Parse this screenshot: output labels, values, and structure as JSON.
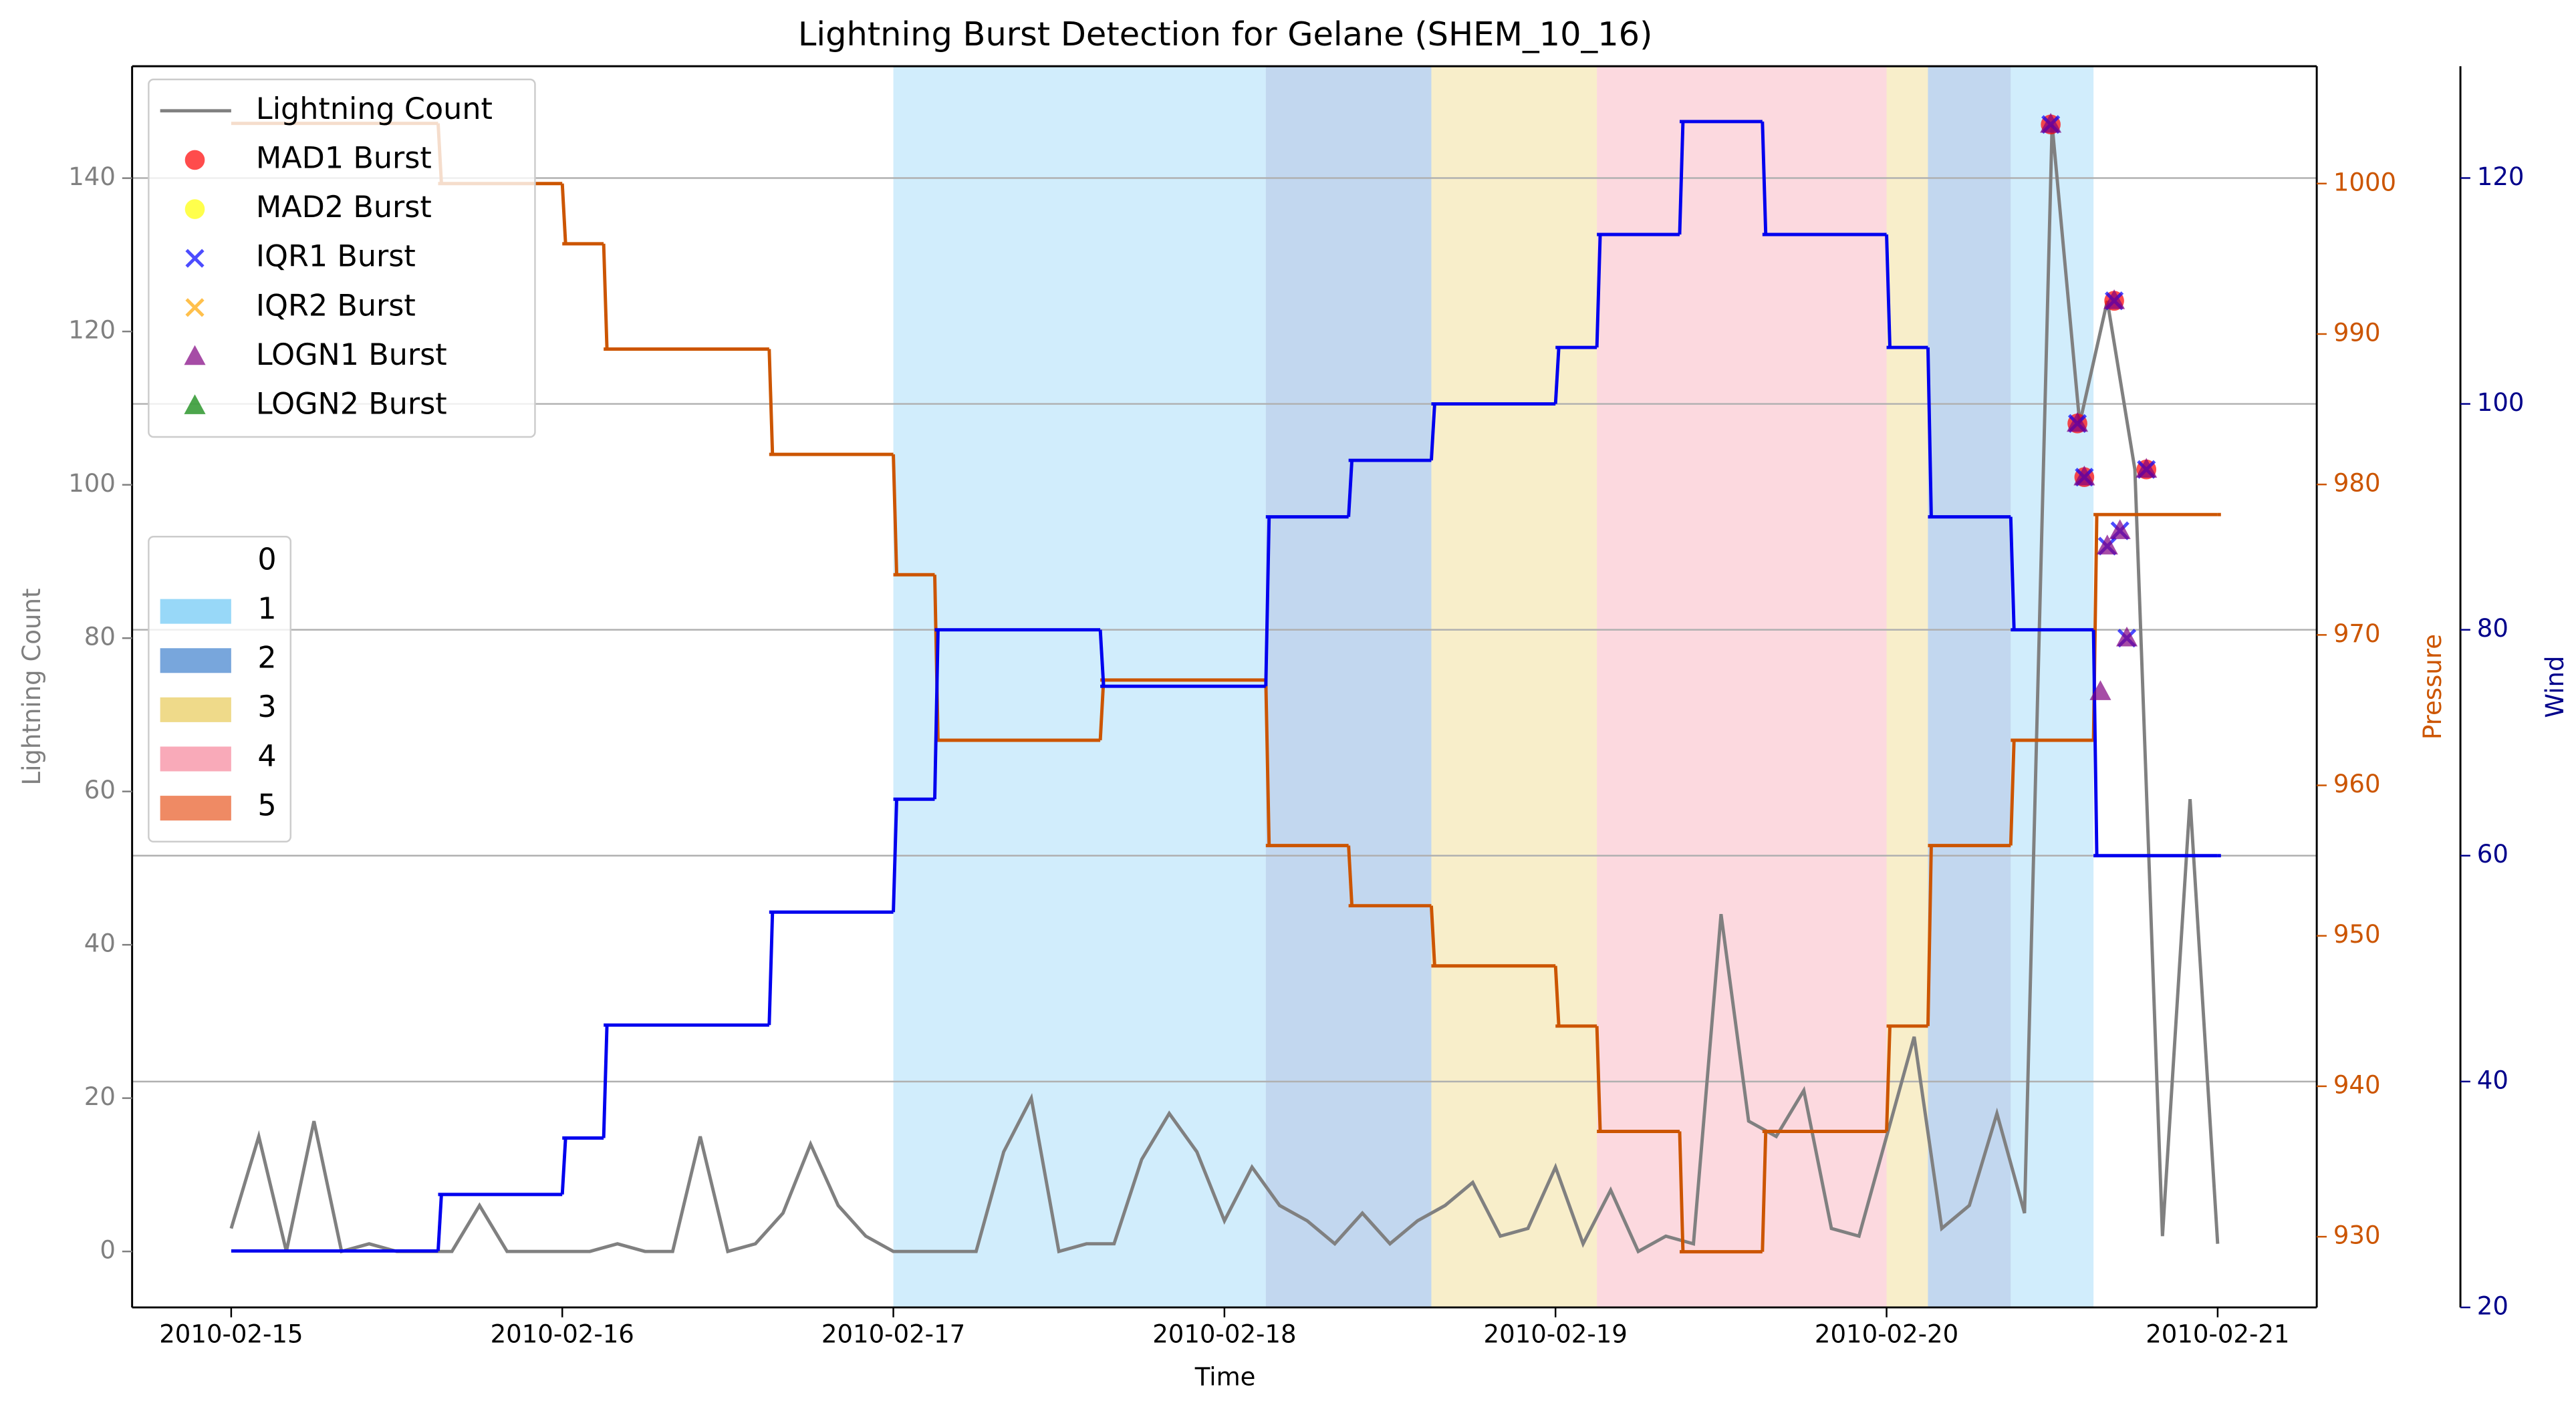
{
  "chart_data": {
    "type": "line",
    "title": "Lightning Burst Detection for Gelane (SHEM_10_16)",
    "xlabel": "Time",
    "ylabel": "Lightning Count",
    "y2label": "Pressure",
    "y3label": "Wind",
    "xlim": [
      "2010-02-14T16:49",
      "2010-02-21T07:11"
    ],
    "xticks": [
      {
        "value": "2010-02-15T00:00",
        "label": "2010-02-15"
      },
      {
        "value": "2010-02-16T00:00",
        "label": "2010-02-16"
      },
      {
        "value": "2010-02-17T00:00",
        "label": "2010-02-17"
      },
      {
        "value": "2010-02-18T00:00",
        "label": "2010-02-18"
      },
      {
        "value": "2010-02-19T00:00",
        "label": "2010-02-19"
      },
      {
        "value": "2010-02-20T00:00",
        "label": "2010-02-20"
      },
      {
        "value": "2010-02-21T00:00",
        "label": "2010-02-21"
      }
    ],
    "ylim": [
      -7.3,
      154.6
    ],
    "yticks": [
      0,
      20,
      40,
      60,
      80,
      100,
      120,
      140
    ],
    "y2lim": [
      925.3,
      1007.8
    ],
    "y2ticks": [
      930,
      940,
      950,
      960,
      970,
      980,
      990,
      1000
    ],
    "y3lim": [
      20,
      129.9
    ],
    "y3ticks": [
      20,
      40,
      60,
      80,
      100,
      120
    ],
    "grid": "y3",
    "legend": "upper left",
    "y_color": "#808080",
    "y2_color": "#cc5500",
    "y3_color": "#00008b",
    "series": [
      {
        "name": "Lightning Count",
        "type": "line",
        "color": "#808080",
        "x": [
          "2010-02-15T00:00",
          "2010-02-15T02:00",
          "2010-02-15T04:00",
          "2010-02-15T06:00",
          "2010-02-15T08:00",
          "2010-02-15T10:00",
          "2010-02-15T12:00",
          "2010-02-15T14:00",
          "2010-02-15T16:00",
          "2010-02-15T18:00",
          "2010-02-15T20:00",
          "2010-02-15T22:00",
          "2010-02-16T00:00",
          "2010-02-16T02:00",
          "2010-02-16T04:00",
          "2010-02-16T06:00",
          "2010-02-16T08:00",
          "2010-02-16T10:00",
          "2010-02-16T12:00",
          "2010-02-16T14:00",
          "2010-02-16T16:00",
          "2010-02-16T18:00",
          "2010-02-16T20:00",
          "2010-02-16T22:00",
          "2010-02-17T00:00",
          "2010-02-17T02:00",
          "2010-02-17T04:00",
          "2010-02-17T06:00",
          "2010-02-17T08:00",
          "2010-02-17T10:00",
          "2010-02-17T12:00",
          "2010-02-17T14:00",
          "2010-02-17T16:00",
          "2010-02-17T18:00",
          "2010-02-17T20:00",
          "2010-02-17T22:00",
          "2010-02-18T00:00",
          "2010-02-18T02:00",
          "2010-02-18T04:00",
          "2010-02-18T06:00",
          "2010-02-18T08:00",
          "2010-02-18T10:00",
          "2010-02-18T12:00",
          "2010-02-18T14:00",
          "2010-02-18T16:00",
          "2010-02-18T18:00",
          "2010-02-18T20:00",
          "2010-02-18T22:00",
          "2010-02-19T00:00",
          "2010-02-19T02:00",
          "2010-02-19T04:00",
          "2010-02-19T06:00",
          "2010-02-19T08:00",
          "2010-02-19T10:00",
          "2010-02-19T12:00",
          "2010-02-19T14:00",
          "2010-02-19T16:00",
          "2010-02-19T18:00",
          "2010-02-19T20:00",
          "2010-02-19T22:00",
          "2010-02-20T00:00",
          "2010-02-20T02:00",
          "2010-02-20T04:00",
          "2010-02-20T06:00",
          "2010-02-20T08:00",
          "2010-02-20T10:00",
          "2010-02-20T12:00",
          "2010-02-20T14:00",
          "2010-02-20T16:00",
          "2010-02-20T18:00",
          "2010-02-20T20:00",
          "2010-02-20T22:00",
          "2010-02-21T00:00"
        ],
        "values": [
          3,
          15,
          0,
          17,
          0,
          1,
          0,
          0,
          0,
          6,
          0,
          0,
          0,
          0,
          1,
          0,
          0,
          15,
          0,
          1,
          5,
          14,
          6,
          2,
          0,
          0,
          0,
          0,
          13,
          20,
          0,
          1,
          1,
          12,
          18,
          13,
          4,
          11,
          6,
          4,
          1,
          5,
          1,
          4,
          6,
          9,
          2,
          3,
          11,
          1,
          8,
          0,
          2,
          1,
          44,
          17,
          15,
          21,
          3,
          2,
          15,
          28,
          3,
          6,
          18,
          5,
          147,
          108,
          124,
          102,
          2,
          59,
          1
        ]
      },
      {
        "name": "MAD1 Burst",
        "type": "scatter",
        "marker": "o",
        "color": "#ff0000",
        "x": [
          "2010-02-20T11:54",
          "2010-02-20T13:50",
          "2010-02-20T14:20",
          "2010-02-20T16:30",
          "2010-02-20T18:50"
        ],
        "values": [
          147,
          108,
          101,
          124,
          102
        ]
      },
      {
        "name": "MAD2 Burst",
        "type": "scatter",
        "marker": "o",
        "color": "#ffff00",
        "x": [],
        "values": []
      },
      {
        "name": "IQR1 Burst",
        "type": "scatter",
        "marker": "x",
        "color": "#0000ff",
        "x": [
          "2010-02-20T11:54",
          "2010-02-20T13:50",
          "2010-02-20T14:20",
          "2010-02-20T16:00",
          "2010-02-20T16:30",
          "2010-02-20T16:55",
          "2010-02-20T17:25",
          "2010-02-20T18:50"
        ],
        "values": [
          147,
          108,
          101,
          92,
          124,
          94,
          80,
          102
        ]
      },
      {
        "name": "IQR2 Burst",
        "type": "scatter",
        "marker": "x",
        "color": "#ffa500",
        "x": [],
        "values": []
      },
      {
        "name": "LOGN1 Burst",
        "type": "scatter",
        "marker": "^",
        "color": "#800080",
        "x": [
          "2010-02-20T11:54",
          "2010-02-20T13:50",
          "2010-02-20T14:20",
          "2010-02-20T15:30",
          "2010-02-20T16:00",
          "2010-02-20T16:30",
          "2010-02-20T16:55",
          "2010-02-20T17:25",
          "2010-02-20T18:50"
        ],
        "values": [
          147,
          108,
          101,
          73,
          92,
          124,
          94,
          80,
          102
        ]
      },
      {
        "name": "LOGN2 Burst",
        "type": "scatter",
        "marker": "^",
        "color": "#008000",
        "x": [],
        "values": []
      },
      {
        "type": "step",
        "axis": "y2",
        "color": "#cc5500",
        "x": [
          "2010-02-15T00:00",
          "2010-02-15T15:00",
          "2010-02-16T00:00",
          "2010-02-16T03:00",
          "2010-02-16T15:00",
          "2010-02-17T00:00",
          "2010-02-17T03:00",
          "2010-02-17T15:00",
          "2010-02-18T03:00",
          "2010-02-18T09:00",
          "2010-02-18T15:00",
          "2010-02-19T00:00",
          "2010-02-19T03:00",
          "2010-02-19T09:00",
          "2010-02-19T15:00",
          "2010-02-20T00:00",
          "2010-02-20T03:00",
          "2010-02-20T09:00",
          "2010-02-20T15:00",
          "2010-02-21T00:00"
        ],
        "values": [
          1004,
          1000,
          996,
          989,
          982,
          974,
          963,
          967,
          956,
          952,
          948,
          944,
          937,
          929,
          937,
          944,
          956,
          963,
          978,
          978
        ]
      },
      {
        "type": "step",
        "axis": "y3",
        "color": "#0000ee",
        "x": [
          "2010-02-15T00:00",
          "2010-02-15T15:00",
          "2010-02-16T00:00",
          "2010-02-16T03:00",
          "2010-02-16T15:00",
          "2010-02-17T00:00",
          "2010-02-17T03:00",
          "2010-02-17T15:00",
          "2010-02-18T03:00",
          "2010-02-18T09:00",
          "2010-02-18T15:00",
          "2010-02-19T00:00",
          "2010-02-19T03:00",
          "2010-02-19T09:00",
          "2010-02-19T15:00",
          "2010-02-20T00:00",
          "2010-02-20T03:00",
          "2010-02-20T09:00",
          "2010-02-20T15:00",
          "2010-02-21T00:00"
        ],
        "values": [
          25,
          30,
          35,
          45,
          55,
          65,
          80,
          75,
          90,
          95,
          100,
          105,
          115,
          125,
          115,
          105,
          90,
          80,
          60,
          60
        ]
      }
    ],
    "shading": {
      "legend": "center left",
      "categories": [
        {
          "label": "0",
          "color": "#ffffff"
        },
        {
          "label": "1",
          "color": "#98d8f8"
        },
        {
          "label": "2",
          "color": "#78a6dc"
        },
        {
          "label": "3",
          "color": "#efda8a"
        },
        {
          "label": "4",
          "color": "#f9aab9"
        },
        {
          "label": "5",
          "color": "#ef8a64"
        }
      ],
      "spans": [
        {
          "start": "2010-02-17T00:00",
          "end": "2010-02-18T03:00",
          "category": 1
        },
        {
          "start": "2010-02-18T03:00",
          "end": "2010-02-18T15:00",
          "category": 2
        },
        {
          "start": "2010-02-18T15:00",
          "end": "2010-02-19T03:00",
          "category": 3
        },
        {
          "start": "2010-02-19T03:00",
          "end": "2010-02-20T00:00",
          "category": 4
        },
        {
          "start": "2010-02-20T00:00",
          "end": "2010-02-20T03:00",
          "category": 3
        },
        {
          "start": "2010-02-20T03:00",
          "end": "2010-02-20T09:00",
          "category": 2
        },
        {
          "start": "2010-02-20T09:00",
          "end": "2010-02-20T15:00",
          "category": 1
        }
      ]
    }
  }
}
